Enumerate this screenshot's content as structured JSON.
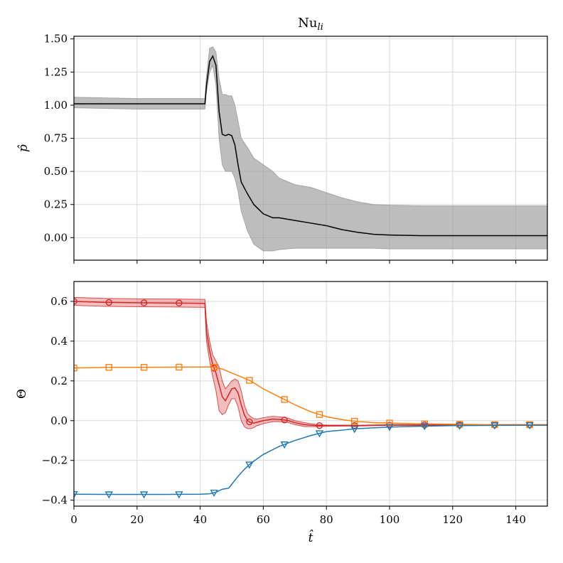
{
  "chart_data": [
    {
      "type": "line",
      "title": "Nu",
      "title_subscript": "li",
      "ylabel": "p̂",
      "xlabel": "",
      "xlim": [
        0,
        150
      ],
      "ylim": [
        -0.17,
        1.52
      ],
      "xticks": [
        0,
        20,
        40,
        60,
        80,
        100,
        120,
        140
      ],
      "yticks": [
        0.0,
        0.25,
        0.5,
        0.75,
        1.0,
        1.25,
        1.5
      ],
      "ytick_labels": [
        "0.00",
        "0.25",
        "0.50",
        "0.75",
        "1.00",
        "1.25",
        "1.50"
      ],
      "grid": true,
      "series": [
        {
          "color": "#000000",
          "band_color": "#999999",
          "x": [
            0,
            20,
            41.5,
            42,
            43,
            44,
            45,
            46,
            47,
            48,
            49,
            50,
            51,
            52,
            53,
            55,
            57,
            60,
            63,
            65,
            70,
            75,
            80,
            85,
            90,
            95,
            100,
            110,
            120,
            130,
            140,
            150
          ],
          "y": [
            1.01,
            1.01,
            1.01,
            1.15,
            1.33,
            1.37,
            1.3,
            0.95,
            0.78,
            0.77,
            0.78,
            0.77,
            0.7,
            0.55,
            0.42,
            0.33,
            0.25,
            0.18,
            0.15,
            0.15,
            0.13,
            0.11,
            0.09,
            0.06,
            0.04,
            0.025,
            0.02,
            0.015,
            0.015,
            0.015,
            0.015,
            0.015
          ],
          "lower": [
            0.98,
            0.97,
            0.97,
            1.1,
            1.25,
            1.3,
            1.15,
            0.75,
            0.55,
            0.5,
            0.5,
            0.5,
            0.45,
            0.35,
            0.2,
            0.05,
            -0.05,
            -0.1,
            -0.1,
            -0.09,
            -0.08,
            -0.08,
            -0.08,
            -0.08,
            -0.08,
            -0.08,
            -0.085,
            -0.085,
            -0.085,
            -0.085,
            -0.085,
            -0.085
          ],
          "upper": [
            1.06,
            1.05,
            1.05,
            1.22,
            1.43,
            1.44,
            1.4,
            1.2,
            1.08,
            1.08,
            1.07,
            1.07,
            1.0,
            0.88,
            0.75,
            0.68,
            0.6,
            0.55,
            0.5,
            0.45,
            0.4,
            0.38,
            0.34,
            0.3,
            0.27,
            0.25,
            0.245,
            0.24,
            0.24,
            0.24,
            0.24,
            0.24
          ]
        }
      ]
    },
    {
      "type": "line",
      "title": "",
      "ylabel": "Θ",
      "xlabel": "t̂",
      "xlim": [
        0,
        150
      ],
      "ylim": [
        -0.43,
        0.7
      ],
      "xticks": [
        0,
        20,
        40,
        60,
        80,
        100,
        120,
        140
      ],
      "yticks": [
        -0.4,
        -0.2,
        0.0,
        0.2,
        0.4,
        0.6
      ],
      "ytick_labels": [
        "−0.4",
        "−0.2",
        "0.0",
        "0.2",
        "0.4",
        "0.6"
      ],
      "grid": true,
      "series": [
        {
          "color": "#d62728",
          "band_color": "#d62728",
          "marker": "circle",
          "x": [
            0,
            10,
            20,
            30,
            41.5,
            42,
            43,
            44,
            45,
            46,
            47,
            48,
            49,
            50,
            51,
            52,
            53,
            54,
            55,
            56,
            57,
            58,
            60,
            63,
            66,
            68,
            70,
            73,
            77,
            80,
            90,
            100,
            110,
            120,
            130,
            140,
            150
          ],
          "y": [
            0.6,
            0.595,
            0.593,
            0.592,
            0.59,
            0.45,
            0.35,
            0.28,
            0.24,
            0.18,
            0.12,
            0.1,
            0.13,
            0.16,
            0.165,
            0.14,
            0.08,
            0.03,
            0.0,
            -0.01,
            -0.012,
            -0.008,
            0.0,
            0.008,
            0.005,
            0.0,
            -0.01,
            -0.02,
            -0.025,
            -0.025,
            -0.025,
            -0.022,
            -0.022,
            -0.022,
            -0.022,
            -0.022,
            -0.022
          ],
          "lower": [
            0.58,
            0.575,
            0.573,
            0.572,
            0.57,
            0.4,
            0.3,
            0.22,
            0.15,
            0.05,
            0.03,
            0.04,
            0.08,
            0.11,
            0.11,
            0.07,
            0.0,
            -0.03,
            -0.04,
            -0.04,
            -0.035,
            -0.025,
            -0.015,
            -0.005,
            -0.005,
            -0.01,
            -0.02,
            -0.03,
            -0.03,
            -0.028,
            -0.027,
            -0.024,
            -0.024,
            -0.024,
            -0.024,
            -0.024,
            -0.024
          ],
          "upper": [
            0.62,
            0.615,
            0.613,
            0.612,
            0.61,
            0.5,
            0.4,
            0.33,
            0.3,
            0.27,
            0.2,
            0.16,
            0.18,
            0.2,
            0.21,
            0.2,
            0.15,
            0.08,
            0.035,
            0.02,
            0.01,
            0.008,
            0.015,
            0.022,
            0.018,
            0.012,
            0.0,
            -0.01,
            -0.02,
            -0.022,
            -0.023,
            -0.02,
            -0.02,
            -0.02,
            -0.02,
            -0.02,
            -0.02
          ],
          "marker_x": [
            0,
            11.1,
            22.2,
            33.3,
            44.4,
            55.6,
            66.7,
            77.8,
            88.9,
            100,
            111.1,
            122.2,
            133.3,
            144.4
          ]
        },
        {
          "color": "#ff7f0e",
          "marker": "square",
          "x": [
            0,
            10,
            20,
            30,
            40,
            44,
            47,
            50,
            53,
            56,
            60,
            65,
            70,
            75,
            80,
            85,
            90,
            95,
            100,
            110,
            120,
            130,
            140,
            150
          ],
          "y": [
            0.265,
            0.268,
            0.268,
            0.269,
            0.27,
            0.27,
            0.26,
            0.24,
            0.22,
            0.2,
            0.16,
            0.12,
            0.08,
            0.045,
            0.02,
            0.005,
            -0.005,
            -0.01,
            -0.012,
            -0.016,
            -0.018,
            -0.02,
            -0.02,
            -0.02
          ],
          "marker_x": [
            0,
            11.1,
            22.2,
            33.3,
            44.4,
            55.6,
            66.7,
            77.8,
            88.9,
            100,
            111.1,
            122.2,
            133.3,
            144.4
          ]
        },
        {
          "color": "#1f77b4",
          "marker": "triangle-down",
          "x": [
            0,
            10,
            20,
            30,
            40,
            43,
            45,
            47,
            49,
            50,
            52,
            54,
            56,
            60,
            65,
            70,
            75,
            80,
            90,
            100,
            110,
            120,
            130,
            140,
            150
          ],
          "y": [
            -0.37,
            -0.371,
            -0.371,
            -0.371,
            -0.37,
            -0.368,
            -0.36,
            -0.345,
            -0.34,
            -0.32,
            -0.28,
            -0.245,
            -0.215,
            -0.17,
            -0.13,
            -0.1,
            -0.075,
            -0.055,
            -0.04,
            -0.032,
            -0.028,
            -0.025,
            -0.024,
            -0.023,
            -0.023
          ],
          "marker_x": [
            0,
            11.1,
            22.2,
            33.3,
            44.4,
            55.6,
            66.7,
            77.8,
            88.9,
            100,
            111.1,
            122.2,
            133.3,
            144.4
          ]
        }
      ]
    }
  ]
}
